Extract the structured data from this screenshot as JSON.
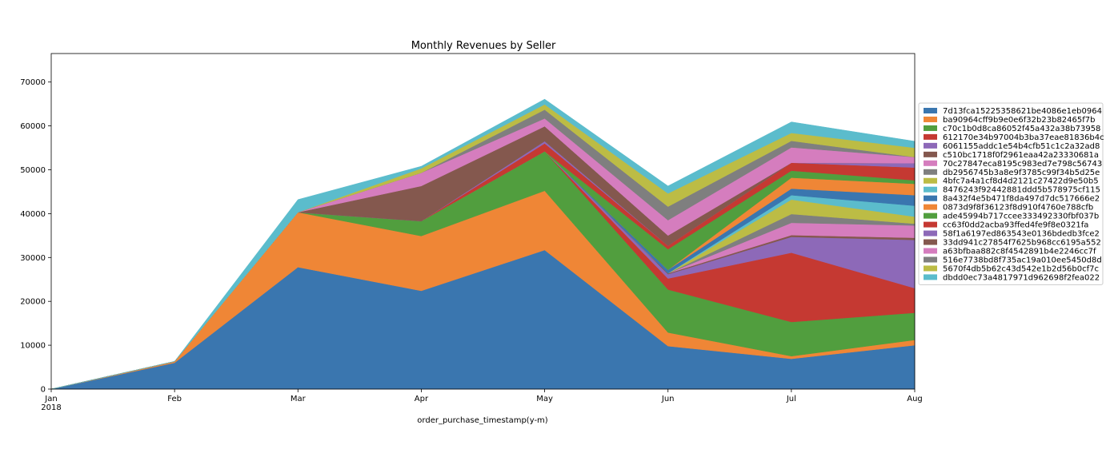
{
  "chart_data": {
    "type": "area",
    "stacked": true,
    "title": "Monthly Revenues by Seller",
    "xlabel": "order_purchase_timestamp(y-m)",
    "ylabel": "",
    "categories": [
      "Jan\n2018",
      "Feb",
      "Mar",
      "Apr",
      "May",
      "Jun",
      "Jul",
      "Aug"
    ],
    "ylim": [
      0,
      76500
    ],
    "yticks": [
      0,
      10000,
      20000,
      30000,
      40000,
      50000,
      60000,
      70000
    ],
    "grid": false,
    "legend_position": "right",
    "series": [
      {
        "name": "7d13fca15225358621be4086e1eb0964",
        "color": "#3a76af",
        "values": [
          0,
          6000,
          27800,
          22400,
          31700,
          9800,
          6900,
          10000
        ]
      },
      {
        "name": "ba90964cff9b9e0e6f32b23b82465f7b",
        "color": "#ef8636",
        "values": [
          0,
          300,
          12500,
          12500,
          13500,
          3100,
          600,
          1200
        ]
      },
      {
        "name": "c70c1b0d8ca86052f45a432a38b73958",
        "color": "#519e3e",
        "values": [
          0,
          0,
          0,
          3400,
          9000,
          9800,
          7800,
          6200
        ]
      },
      {
        "name": "612170e34b97004b3ba37eae81836b4c",
        "color": "#c53932",
        "values": [
          0,
          0,
          0,
          0,
          0,
          2500,
          15800,
          5600
        ]
      },
      {
        "name": "6061155addc1e54b4cfb51c1c2a32ad8",
        "color": "#8d69b8",
        "values": [
          0,
          0,
          0,
          0,
          0,
          1000,
          3600,
          11000
        ]
      },
      {
        "name": "c510bc1718f0f2961eaa42a23330681a",
        "color": "#84584e",
        "values": [
          0,
          0,
          0,
          0,
          0,
          200,
          400,
          500
        ]
      },
      {
        "name": "70c27847eca8195c983ed7e798c56743",
        "color": "#d57dbe",
        "values": [
          0,
          0,
          0,
          0,
          0,
          0,
          2800,
          2800
        ]
      },
      {
        "name": "db2956745b3a8e9f3785c99f34b5d25e",
        "color": "#7f7f7f",
        "values": [
          0,
          0,
          0,
          0,
          0,
          0,
          2000,
          400
        ]
      },
      {
        "name": "4bfc7a4a1cf8d4d2121c27422d9e50b5",
        "color": "#bcbc45",
        "values": [
          0,
          0,
          0,
          0,
          0,
          0,
          3300,
          1600
        ]
      },
      {
        "name": "8476243f92442881ddd5b578975cf115",
        "color": "#5bbccc",
        "values": [
          0,
          0,
          0,
          0,
          0,
          0,
          1000,
          2500
        ]
      },
      {
        "name": "8a432f4e5b471f8da497d7dc517666e2",
        "color": "#3a76af",
        "values": [
          0,
          0,
          0,
          0,
          0,
          800,
          1500,
          2400
        ]
      },
      {
        "name": "0873d9f8f36123f8d910f4760e788cfb",
        "color": "#ef8636",
        "values": [
          0,
          0,
          0,
          0,
          0,
          0,
          2500,
          2600
        ]
      },
      {
        "name": "ade45994b717ccee333492330fbf037b",
        "color": "#519e3e",
        "values": [
          0,
          0,
          0,
          0,
          0,
          4700,
          1600,
          800
        ]
      },
      {
        "name": "cc63f0dd2acba93ffed4fe9f8e0321fa",
        "color": "#c53932",
        "values": [
          0,
          0,
          0,
          0,
          1800,
          800,
          1800,
          2900
        ]
      },
      {
        "name": "58f1a6197ed863543e0136bdedb3fce2",
        "color": "#8d69b8",
        "values": [
          0,
          0,
          0,
          0,
          500,
          0,
          0,
          1000
        ]
      },
      {
        "name": "33dd941c27854f7625b968cc6195a552",
        "color": "#84584e",
        "values": [
          0,
          0,
          0,
          8000,
          3400,
          2300,
          0,
          0
        ]
      },
      {
        "name": "a63bfbaa882c8f4542891b4e2246cc7f",
        "color": "#d57dbe",
        "values": [
          0,
          0,
          0,
          3000,
          1800,
          3500,
          3500,
          1400
        ]
      },
      {
        "name": "516e7738bd8f735ac19a010ee5450d8d",
        "color": "#7f7f7f",
        "values": [
          0,
          0,
          0,
          0,
          2000,
          3100,
          1500,
          0
        ]
      },
      {
        "name": "5670f4db5b62c43d542e1b2d56b0cf7c",
        "color": "#bcbc45",
        "values": [
          0,
          0,
          0,
          1000,
          1200,
          3000,
          1800,
          2100
        ]
      },
      {
        "name": "dbdd0ec73a4817971d962698f2fea022",
        "color": "#5bbccc",
        "values": [
          0,
          0,
          2900,
          500,
          1200,
          1700,
          2500,
          1500
        ]
      }
    ]
  }
}
